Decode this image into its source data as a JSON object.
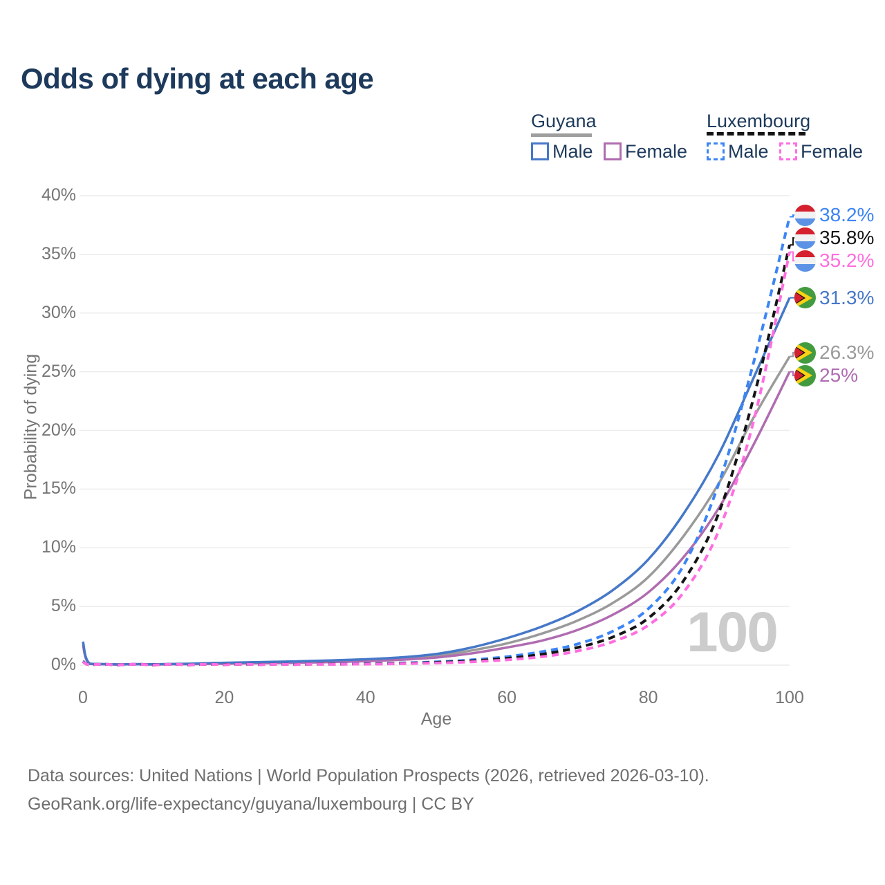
{
  "title": "Odds of dying at each age",
  "watermark": "100",
  "legend": {
    "groups": [
      {
        "country": "Guyana",
        "line_style": "solid",
        "line_color": "#9e9e9e",
        "items": [
          {
            "label": "Male",
            "color": "#4678c8",
            "dashed": false
          },
          {
            "label": "Female",
            "color": "#b06cb0",
            "dashed": false
          }
        ]
      },
      {
        "country": "Luxembourg",
        "line_style": "dashed",
        "line_color": "#141414",
        "items": [
          {
            "label": "Male",
            "color": "#3c85f5",
            "dashed": true
          },
          {
            "label": "Female",
            "color": "#ff6ee0",
            "dashed": true
          }
        ]
      }
    ]
  },
  "axes": {
    "y_label": "Probability of dying",
    "x_label": "Age",
    "y_ticks": [
      0,
      5,
      10,
      15,
      20,
      25,
      30,
      35,
      40
    ],
    "x_ticks": [
      0,
      20,
      40,
      60,
      80,
      100
    ]
  },
  "chart_data": {
    "type": "line",
    "title": "Odds of dying at each age",
    "xlabel": "Age",
    "ylabel": "Probability of dying",
    "xlim": [
      0,
      100
    ],
    "ylim": [
      0,
      40
    ],
    "grid": "horizontal",
    "legend_position": "top-right",
    "x": [
      0,
      1,
      5,
      10,
      15,
      20,
      25,
      30,
      35,
      40,
      45,
      50,
      55,
      60,
      65,
      70,
      75,
      80,
      85,
      90,
      95,
      100
    ],
    "series": [
      {
        "id": "guyana-total",
        "name": "Guyana (both sexes)",
        "country": "Guyana",
        "sex": "total",
        "color": "#9a9a9a",
        "dashed": false,
        "flag": "guyana",
        "end_label": "26.3%",
        "values": [
          1.85,
          0.11,
          0.055,
          0.06,
          0.1,
          0.16,
          0.21,
          0.26,
          0.33,
          0.42,
          0.56,
          0.8,
          1.25,
          1.85,
          2.7,
          3.8,
          5.3,
          7.5,
          11.0,
          15.5,
          21.2,
          26.3
        ]
      },
      {
        "id": "guyana-female",
        "name": "Guyana Female",
        "country": "Guyana",
        "sex": "female",
        "color": "#b06cb0",
        "dashed": false,
        "flag": "guyana",
        "end_label": "25%",
        "values": [
          1.7,
          0.1,
          0.05,
          0.05,
          0.08,
          0.12,
          0.16,
          0.2,
          0.26,
          0.34,
          0.46,
          0.65,
          1.0,
          1.5,
          2.1,
          3.0,
          4.3,
          6.2,
          9.2,
          13.4,
          18.9,
          25.0
        ]
      },
      {
        "id": "guyana-male",
        "name": "Guyana Male",
        "country": "Guyana",
        "sex": "male",
        "color": "#4678c8",
        "dashed": false,
        "flag": "guyana",
        "end_label": "31.3%",
        "values": [
          2.0,
          0.12,
          0.06,
          0.07,
          0.12,
          0.2,
          0.26,
          0.32,
          0.4,
          0.5,
          0.66,
          0.95,
          1.5,
          2.3,
          3.3,
          4.6,
          6.4,
          9.0,
          12.9,
          18.0,
          24.6,
          31.3
        ]
      },
      {
        "id": "luxembourg-male",
        "name": "Luxembourg Male",
        "country": "Luxembourg",
        "sex": "male",
        "color": "#3c85f5",
        "dashed": true,
        "flag": "luxembourg",
        "end_label": "38.2%",
        "values": [
          0.35,
          0.02,
          0.01,
          0.01,
          0.02,
          0.05,
          0.06,
          0.07,
          0.09,
          0.12,
          0.18,
          0.28,
          0.45,
          0.72,
          1.15,
          1.8,
          2.9,
          4.8,
          8.5,
          15.5,
          26.0,
          38.2
        ]
      },
      {
        "id": "luxembourg-total",
        "name": "Luxembourg (both sexes)",
        "country": "Luxembourg",
        "sex": "total",
        "color": "#141414",
        "dashed": true,
        "flag": "luxembourg",
        "end_label": "35.8%",
        "values": [
          0.31,
          0.018,
          0.009,
          0.009,
          0.018,
          0.04,
          0.045,
          0.055,
          0.07,
          0.1,
          0.15,
          0.23,
          0.36,
          0.58,
          0.93,
          1.5,
          2.4,
          4.0,
          7.2,
          13.0,
          23.0,
          35.8
        ]
      },
      {
        "id": "luxembourg-female",
        "name": "Luxembourg Female",
        "country": "Luxembourg",
        "sex": "female",
        "color": "#ff6ee0",
        "dashed": true,
        "flag": "luxembourg",
        "end_label": "35.2%",
        "values": [
          0.28,
          0.015,
          0.008,
          0.008,
          0.015,
          0.025,
          0.03,
          0.04,
          0.055,
          0.08,
          0.12,
          0.18,
          0.28,
          0.45,
          0.72,
          1.2,
          2.0,
          3.4,
          6.2,
          11.5,
          21.0,
          35.2
        ]
      }
    ]
  },
  "colors": {
    "title_text": "#1d3a5c",
    "tick_text": "#757575",
    "footer_text": "#6e6e6e",
    "gridline": "#ececec",
    "watermark": "#cccccc",
    "flag_luxembourg": [
      "#d5202e",
      "#f2f2f2",
      "#5b92e5"
    ],
    "flag_guyana": [
      "#439b3f",
      "#fcd116",
      "#1a1a14",
      "#d6202f"
    ]
  },
  "footer": {
    "line1": "Data sources: United Nations | World Population Prospects (2026, retrieved 2026-03-10).",
    "line2": "GeoRank.org/life-expectancy/guyana/luxembourg | CC BY"
  }
}
